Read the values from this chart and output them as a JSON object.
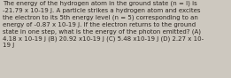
{
  "text": "The energy of the hydrogen atom in the ground state (n = l) is\n-21.79 x 10-19 J. A particle strikes a hydrogen atom and excites\nthe electron to its 5th energy level (n = 5) corresponding to an\nenergy of -0.87 x 10-19 J. If the electron returns to the ground\nstate in one step, what is the energy of the photon emitted? (A)\n4.18 x 10-19 J (B) 20.92 x10-19 J (C) 5.48 x10-19 J (D) 2.27 x 10-\n19 J",
  "bg_color": "#cdc8bf",
  "text_color": "#2b2520",
  "font_size": 5.05,
  "fig_width": 2.61,
  "fig_height": 0.88,
  "dpi": 100
}
